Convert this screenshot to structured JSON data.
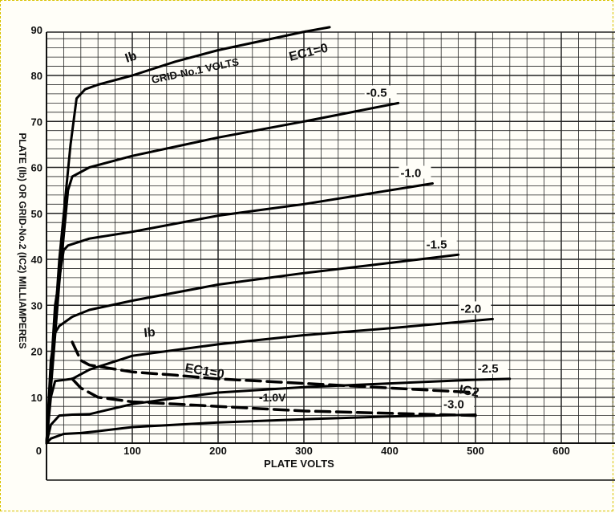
{
  "chart_data": {
    "type": "line",
    "xlabel": "PLATE VOLTS",
    "ylabel": "PLATE (Ib) OR GRID-No.2 (IC2) MILLIAMPERES",
    "xlim": [
      0,
      700
    ],
    "ylim": [
      0,
      90
    ],
    "x_ticks": [
      "0",
      "100",
      "200",
      "300",
      "400",
      "500",
      "600"
    ],
    "y_ticks": [
      "0",
      "10",
      "20",
      "30",
      "40",
      "50",
      "60",
      "70",
      "80",
      "90"
    ],
    "grid": true,
    "annotations": {
      "ib_upper": "Ib",
      "grid_volts": "GRID-No.1 VOLTS",
      "ec1_zero_upper": "EC1=0",
      "ib_lower": "Ib",
      "ec1_zero_lower": "EC1=0",
      "minus_1v": "-1.0V",
      "ic2": "IC2"
    },
    "series": [
      {
        "name": "EC1=0",
        "style": "solid",
        "x": [
          0,
          15,
          28,
          35,
          45,
          60,
          100,
          150,
          200,
          250,
          300,
          330
        ],
        "y": [
          0,
          40,
          65,
          75,
          77,
          78,
          80,
          83,
          85.5,
          87.5,
          89.5,
          90.5
        ]
      },
      {
        "name": "-0.5",
        "style": "solid",
        "x": [
          0,
          15,
          25,
          30,
          50,
          100,
          200,
          300,
          410
        ],
        "y": [
          0,
          35,
          55,
          58,
          60,
          62.5,
          66.5,
          70,
          74
        ]
      },
      {
        "name": "-1.0",
        "style": "solid",
        "x": [
          0,
          10,
          20,
          25,
          50,
          100,
          200,
          300,
          450
        ],
        "y": [
          0,
          30,
          42,
          43,
          44.5,
          46,
          49.5,
          52,
          56.5
        ]
      },
      {
        "name": "-1.5",
        "style": "solid",
        "x": [
          0,
          5,
          10,
          15,
          30,
          50,
          100,
          200,
          300,
          480
        ],
        "y": [
          0,
          18,
          24,
          25.5,
          27.5,
          29,
          31,
          34.5,
          37,
          41
        ]
      },
      {
        "name": "-2.0",
        "style": "solid",
        "x": [
          0,
          5,
          10,
          30,
          50,
          100,
          200,
          300,
          400,
          520
        ],
        "y": [
          0,
          10,
          13.5,
          14,
          16,
          19,
          21.5,
          23.5,
          25,
          27
        ]
      },
      {
        "name": "-2.5",
        "style": "solid",
        "x": [
          0,
          5,
          15,
          30,
          50,
          100,
          150,
          200,
          300,
          400,
          500,
          540
        ],
        "y": [
          0,
          4,
          6,
          6.2,
          6.3,
          8.5,
          9.8,
          11,
          12.2,
          13,
          13.8,
          14
        ]
      },
      {
        "name": "-3.0",
        "style": "solid",
        "x": [
          0,
          5,
          20,
          40,
          60,
          100,
          200,
          300,
          400,
          500
        ],
        "y": [
          0,
          1,
          2,
          2.2,
          2.6,
          3.5,
          4.5,
          5.2,
          5.8,
          6.2
        ]
      },
      {
        "name": "IC2 EC1=0",
        "style": "dashed",
        "x": [
          30,
          40,
          50,
          100,
          150,
          200,
          250,
          300,
          400,
          500
        ],
        "y": [
          22,
          18,
          17,
          15.5,
          14.8,
          14,
          13.5,
          13,
          12,
          11
        ]
      },
      {
        "name": "IC2 -1.0V",
        "style": "dashed",
        "x": [
          30,
          40,
          60,
          100,
          150,
          200,
          250,
          300,
          400,
          500
        ],
        "y": [
          14,
          12,
          10,
          9,
          8.5,
          8,
          7.5,
          7,
          6.5,
          6
        ]
      }
    ]
  }
}
